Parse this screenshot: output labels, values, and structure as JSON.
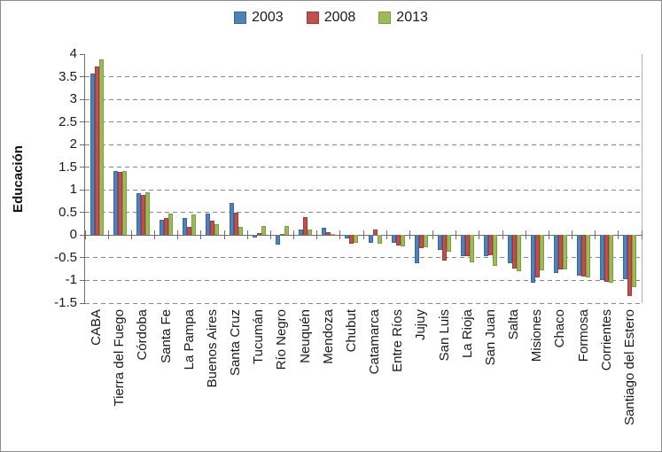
{
  "chart_data": {
    "type": "bar",
    "title": "",
    "ylabel": "Educación",
    "xlabel": "",
    "ylim": [
      -1.5,
      4
    ],
    "ytick_step": 0.5,
    "grid": "dashed-horizontal",
    "legend_position": "top-center",
    "categories": [
      "CABA",
      "Tierra del Fuego",
      "Córdoba",
      "Santa Fe",
      "La Pampa",
      "Buenos Aires",
      "Santa Cruz",
      "Tucumán",
      "Río Negro",
      "Neuquén",
      "Mendoza",
      "Chubut",
      "Catamarca",
      "Entre Ríos",
      "Jujuy",
      "San Luis",
      "La Rioja",
      "San Juan",
      "Salta",
      "Misiones",
      "Chaco",
      "Formosa",
      "Corrientes",
      "Santiago del Estero"
    ],
    "series": [
      {
        "name": "2003",
        "color": "#4F81BD",
        "border_color": "#3A679A",
        "values": [
          3.57,
          1.42,
          0.93,
          0.34,
          0.38,
          0.47,
          0.72,
          -0.06,
          -0.2,
          0.12,
          0.17,
          -0.08,
          -0.17,
          -0.17,
          -0.61,
          -0.33,
          -0.47,
          -0.47,
          -0.62,
          -1.05,
          -0.83,
          -0.89,
          -1.0,
          -0.97
        ]
      },
      {
        "name": "2008",
        "color": "#C0504D",
        "border_color": "#9E3B39",
        "values": [
          3.72,
          1.39,
          0.89,
          0.38,
          0.19,
          0.32,
          0.49,
          0.05,
          0.02,
          0.39,
          0.06,
          -0.18,
          0.12,
          -0.23,
          -0.29,
          -0.56,
          -0.47,
          -0.44,
          -0.73,
          -0.94,
          -0.75,
          -0.91,
          -1.04,
          -1.35
        ]
      },
      {
        "name": "2013",
        "color": "#9BBB59",
        "border_color": "#7E9D3E",
        "values": [
          3.89,
          1.42,
          0.95,
          0.48,
          0.46,
          0.25,
          0.18,
          0.2,
          0.2,
          0.12,
          0.01,
          -0.17,
          -0.19,
          -0.24,
          -0.27,
          -0.37,
          -0.59,
          -0.68,
          -0.8,
          -0.77,
          -0.75,
          -0.94,
          -1.05,
          -1.14
        ]
      }
    ]
  }
}
